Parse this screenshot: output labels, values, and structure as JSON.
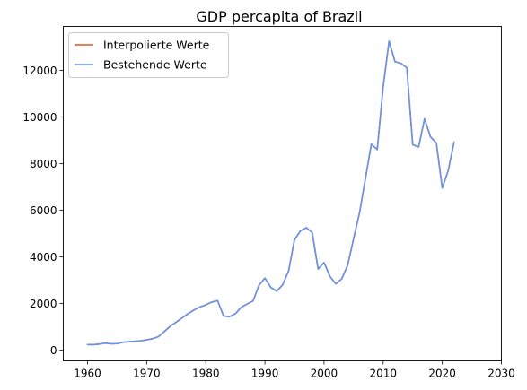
{
  "chart_data": {
    "type": "line",
    "title": "GDP percapita of Brazil",
    "xlabel": "",
    "ylabel": "",
    "xlim": [
      1955.9,
      2030
    ],
    "ylim": [
      -460,
      13880
    ],
    "xticks": [
      1960,
      1970,
      1980,
      1990,
      2000,
      2010,
      2020,
      2030
    ],
    "yticks": [
      0,
      2000,
      4000,
      6000,
      8000,
      10000,
      12000
    ],
    "grid": false,
    "legend": {
      "placement": "top-left"
    },
    "x": [
      1960,
      1961,
      1962,
      1963,
      1964,
      1965,
      1966,
      1967,
      1968,
      1969,
      1970,
      1971,
      1972,
      1973,
      1974,
      1975,
      1976,
      1977,
      1978,
      1979,
      1980,
      1981,
      1982,
      1983,
      1984,
      1985,
      1986,
      1987,
      1988,
      1989,
      1990,
      1991,
      1992,
      1993,
      1994,
      1995,
      1996,
      1997,
      1998,
      1999,
      2000,
      2001,
      2002,
      2003,
      2004,
      2005,
      2006,
      2007,
      2008,
      2009,
      2010,
      2011,
      2012,
      2013,
      2014,
      2015,
      2016,
      2017,
      2018,
      2019,
      2020,
      2021,
      2022
    ],
    "series": [
      {
        "name": "Interpolierte Werte",
        "color": "#e8541e",
        "values": [
          240,
          235,
          260,
          300,
          270,
          280,
          340,
          360,
          380,
          400,
          440,
          490,
          580,
          800,
          1030,
          1200,
          1380,
          1560,
          1720,
          1850,
          1940,
          2060,
          2120,
          1470,
          1430,
          1560,
          1840,
          1980,
          2110,
          2780,
          3090,
          2690,
          2530,
          2800,
          3390,
          4730,
          5110,
          5250,
          5040,
          3480,
          3750,
          3160,
          2840,
          3060,
          3640,
          4780,
          5880,
          7360,
          8830,
          8600,
          11290,
          13250,
          12370,
          12300,
          12110,
          8810,
          8710,
          9920,
          9150,
          8880,
          6950,
          7700,
          8920
        ]
      },
      {
        "name": "Bestehende Werte",
        "color": "#6495ed",
        "values": [
          240,
          235,
          260,
          300,
          270,
          280,
          340,
          360,
          380,
          400,
          440,
          490,
          580,
          800,
          1030,
          1200,
          1380,
          1560,
          1720,
          1850,
          1940,
          2060,
          2120,
          1470,
          1430,
          1560,
          1840,
          1980,
          2110,
          2780,
          3090,
          2690,
          2530,
          2800,
          3390,
          4730,
          5110,
          5250,
          5040,
          3480,
          3750,
          3160,
          2840,
          3060,
          3640,
          4780,
          5880,
          7360,
          8830,
          8600,
          11290,
          13250,
          12370,
          12300,
          12110,
          8810,
          8710,
          9920,
          9150,
          8880,
          6950,
          7700,
          8920
        ]
      }
    ]
  }
}
